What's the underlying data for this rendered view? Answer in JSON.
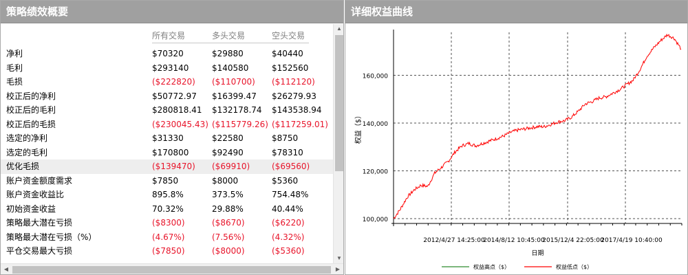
{
  "left_panel": {
    "title": "策略绩效概要",
    "columns": [
      "所有交易",
      "多头交易",
      "空头交易"
    ],
    "rows": [
      {
        "label": "净利",
        "values": [
          "$70320",
          "$29880",
          "$40440"
        ],
        "negative": false
      },
      {
        "label": "毛利",
        "values": [
          "$293140",
          "$140580",
          "$152560"
        ],
        "negative": false
      },
      {
        "label": "毛损",
        "values": [
          "($222820)",
          "($110700)",
          "($112120)"
        ],
        "negative": true
      },
      {
        "label": "校正后的净利",
        "values": [
          "$50772.97",
          "$16399.47",
          "$26279.93"
        ],
        "negative": false
      },
      {
        "label": "校正后的毛利",
        "values": [
          "$280818.41",
          "$132178.74",
          "$143538.94"
        ],
        "negative": false
      },
      {
        "label": "校正后的毛损",
        "values": [
          "($230045.43)",
          "($115779.26)",
          "($117259.01)"
        ],
        "negative": true
      },
      {
        "label": "选定的净利",
        "values": [
          "$31330",
          "$22580",
          "$8750"
        ],
        "negative": false
      },
      {
        "label": "选定的毛利",
        "values": [
          "$170800",
          "$92490",
          "$78310"
        ],
        "negative": false
      },
      {
        "label": "优化毛损",
        "values": [
          "($139470)",
          "($69910)",
          "($69560)"
        ],
        "negative": true,
        "highlighted": true
      },
      {
        "label": "账户资金额度需求",
        "values": [
          "$7850",
          "$8000",
          "$5360"
        ],
        "negative": false
      },
      {
        "label": "账户资金收益比",
        "values": [
          "895.8%",
          "373.5%",
          "754.48%"
        ],
        "negative": false
      },
      {
        "label": "初始资金收益",
        "values": [
          "70.32%",
          "29.88%",
          "40.44%"
        ],
        "negative": false
      },
      {
        "label": "策略最大潜在亏损",
        "values": [
          "($8300)",
          "($8670)",
          "($6220)"
        ],
        "negative": true
      },
      {
        "label": "策略最大潜在亏损（%）",
        "values": [
          "(4.67%)",
          "(7.56%)",
          "(4.32%)"
        ],
        "negative": true
      },
      {
        "label": "平仓交易最大亏损",
        "values": [
          "($7850)",
          "($8000)",
          "($5360)"
        ],
        "negative": true
      }
    ],
    "scroll_icons": {
      "up": "▲",
      "down": "▼",
      "left": "◀",
      "right": "▶"
    }
  },
  "right_panel": {
    "title": "详细权益曲线",
    "chart_data": {
      "type": "line",
      "ylabel": "权益（$）",
      "xlabel": "日期",
      "y_ticks": [
        "100,000",
        "120,000",
        "140,000",
        "160,000"
      ],
      "y_tick_values": [
        100000,
        120000,
        140000,
        160000
      ],
      "ylim": [
        98000,
        178000
      ],
      "x_ticks": [
        "2012/4/27 14:25:00",
        "2014/8/12 10:45:00",
        "2015/12/4 22:05:00",
        "2017/4/19 10:40:00"
      ],
      "grid": true,
      "legend_position": "bottom",
      "series": [
        {
          "name": "权益高点（$）",
          "color": "#2e8b2e",
          "values": []
        },
        {
          "name": "权益低点（$）",
          "color": "#ff0000",
          "values": [
            100000,
            104000,
            109000,
            112000,
            114000,
            113500,
            119000,
            121500,
            124000,
            128000,
            130500,
            131500,
            130500,
            131500,
            132500,
            133500,
            134500,
            136000,
            137000,
            137500,
            138000,
            138500,
            138500,
            139500,
            140500,
            141000,
            142500,
            145000,
            148000,
            149000,
            150500,
            151000,
            152500,
            154000,
            156000,
            158000,
            162500,
            168000,
            171500,
            174500,
            177000,
            175500,
            171000
          ]
        }
      ]
    }
  }
}
